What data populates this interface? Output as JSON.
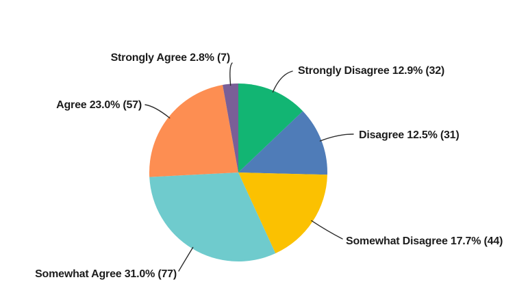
{
  "figure": {
    "background_color": "#ffffff",
    "label_text_color": "#1c1c1c",
    "leader_line_color": "#2b2b2b"
  },
  "chart_data": {
    "type": "pie",
    "title": "",
    "direction": "clockwise",
    "start_angle_deg": 0,
    "legend_position": "none",
    "label_style": "outside-with-leader-lines",
    "categories": [
      "Strongly Disagree",
      "Disagree",
      "Somewhat Disagree",
      "Somewhat Agree",
      "Agree",
      "Strongly Agree"
    ],
    "values": [
      32,
      31,
      44,
      77,
      57,
      7
    ],
    "percent_labels": [
      "12.9%",
      "12.5%",
      "17.7%",
      "31.0%",
      "23.0%",
      "2.8%"
    ],
    "slices": [
      {
        "name": "Strongly Disagree",
        "percent": "12.9%",
        "count": 32,
        "label": "Strongly Disagree 12.9% (32)",
        "color": "#12B573"
      },
      {
        "name": "Disagree",
        "percent": "12.5%",
        "count": 31,
        "label": "Disagree 12.5% (31)",
        "color": "#4F7CB8"
      },
      {
        "name": "Somewhat Disagree",
        "percent": "17.7%",
        "count": 44,
        "label": "Somewhat Disagree 17.7% (44)",
        "color": "#FBC101"
      },
      {
        "name": "Somewhat Agree",
        "percent": "31.0%",
        "count": 77,
        "label": "Somewhat Agree 31.0% (77)",
        "color": "#6FCBCD"
      },
      {
        "name": "Agree",
        "percent": "23.0%",
        "count": 57,
        "label": "Agree 23.0% (57)",
        "color": "#FD8E52"
      },
      {
        "name": "Strongly Agree",
        "percent": "2.8%",
        "count": 7,
        "label": "Strongly Agree 2.8% (7)",
        "color": "#7A5F97"
      }
    ]
  }
}
